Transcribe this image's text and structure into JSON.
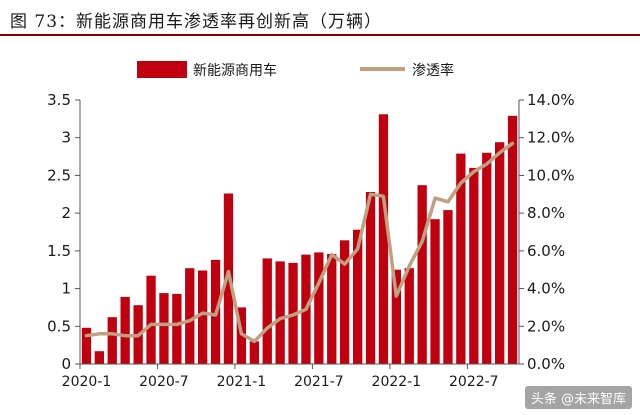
{
  "title": "图 73：新能源商用车渗透率再创新高（万辆）",
  "watermark": "头条 @未来智库",
  "colors": {
    "bar": "#c0000f",
    "line": "#bfa181",
    "title_rule": "#8b0000"
  },
  "chart_data": {
    "type": "bar+line",
    "categories": [
      "2020-1",
      "2020-2",
      "2020-3",
      "2020-4",
      "2020-5",
      "2020-6",
      "2020-7",
      "2020-8",
      "2020-9",
      "2020-10",
      "2020-11",
      "2020-12",
      "2021-1",
      "2021-2",
      "2021-3",
      "2021-4",
      "2021-5",
      "2021-6",
      "2021-7",
      "2021-8",
      "2021-9",
      "2021-10",
      "2021-11",
      "2021-12",
      "2022-1",
      "2022-2",
      "2022-3",
      "2022-4",
      "2022-5",
      "2022-6",
      "2022-7",
      "2022-8",
      "2022-9",
      "2022-10"
    ],
    "x_tick_labels": [
      "2020-1",
      "2020-7",
      "2021-1",
      "2021-7",
      "2022-1",
      "2022-7"
    ],
    "x_tick_indices": [
      0,
      6,
      12,
      18,
      24,
      30
    ],
    "series": [
      {
        "name": "新能源商用车",
        "type": "bar",
        "axis": "left",
        "values": [
          0.48,
          0.17,
          0.62,
          0.89,
          0.78,
          1.17,
          0.94,
          0.93,
          1.27,
          1.24,
          1.38,
          2.26,
          0.75,
          0.3,
          1.4,
          1.36,
          1.34,
          1.45,
          1.48,
          1.46,
          1.64,
          1.78,
          2.28,
          3.31,
          1.25,
          1.27,
          2.37,
          1.92,
          2.04,
          2.79,
          2.6,
          2.8,
          2.94,
          3.29
        ]
      },
      {
        "name": "渗透率",
        "type": "line",
        "axis": "right",
        "values": [
          1.5,
          1.6,
          1.6,
          1.5,
          1.5,
          2.1,
          2.1,
          2.1,
          2.3,
          2.7,
          2.6,
          4.9,
          1.6,
          1.2,
          1.9,
          2.4,
          2.6,
          2.9,
          4.3,
          5.8,
          5.3,
          6.1,
          9.0,
          8.9,
          3.6,
          5.2,
          6.5,
          8.8,
          8.6,
          9.6,
          10.2,
          10.6,
          11.2,
          11.7
        ]
      }
    ],
    "left_axis": {
      "min": 0,
      "max": 3.5,
      "ticks": [
        "0",
        "0.5",
        "1",
        "1.5",
        "2",
        "2.5",
        "3",
        "3.5"
      ]
    },
    "right_axis": {
      "min": 0,
      "max": 14,
      "ticks": [
        "0.0%",
        "2.0%",
        "4.0%",
        "6.0%",
        "8.0%",
        "10.0%",
        "12.0%",
        "14.0%"
      ]
    },
    "legend_position": "top-center",
    "grid": false
  }
}
